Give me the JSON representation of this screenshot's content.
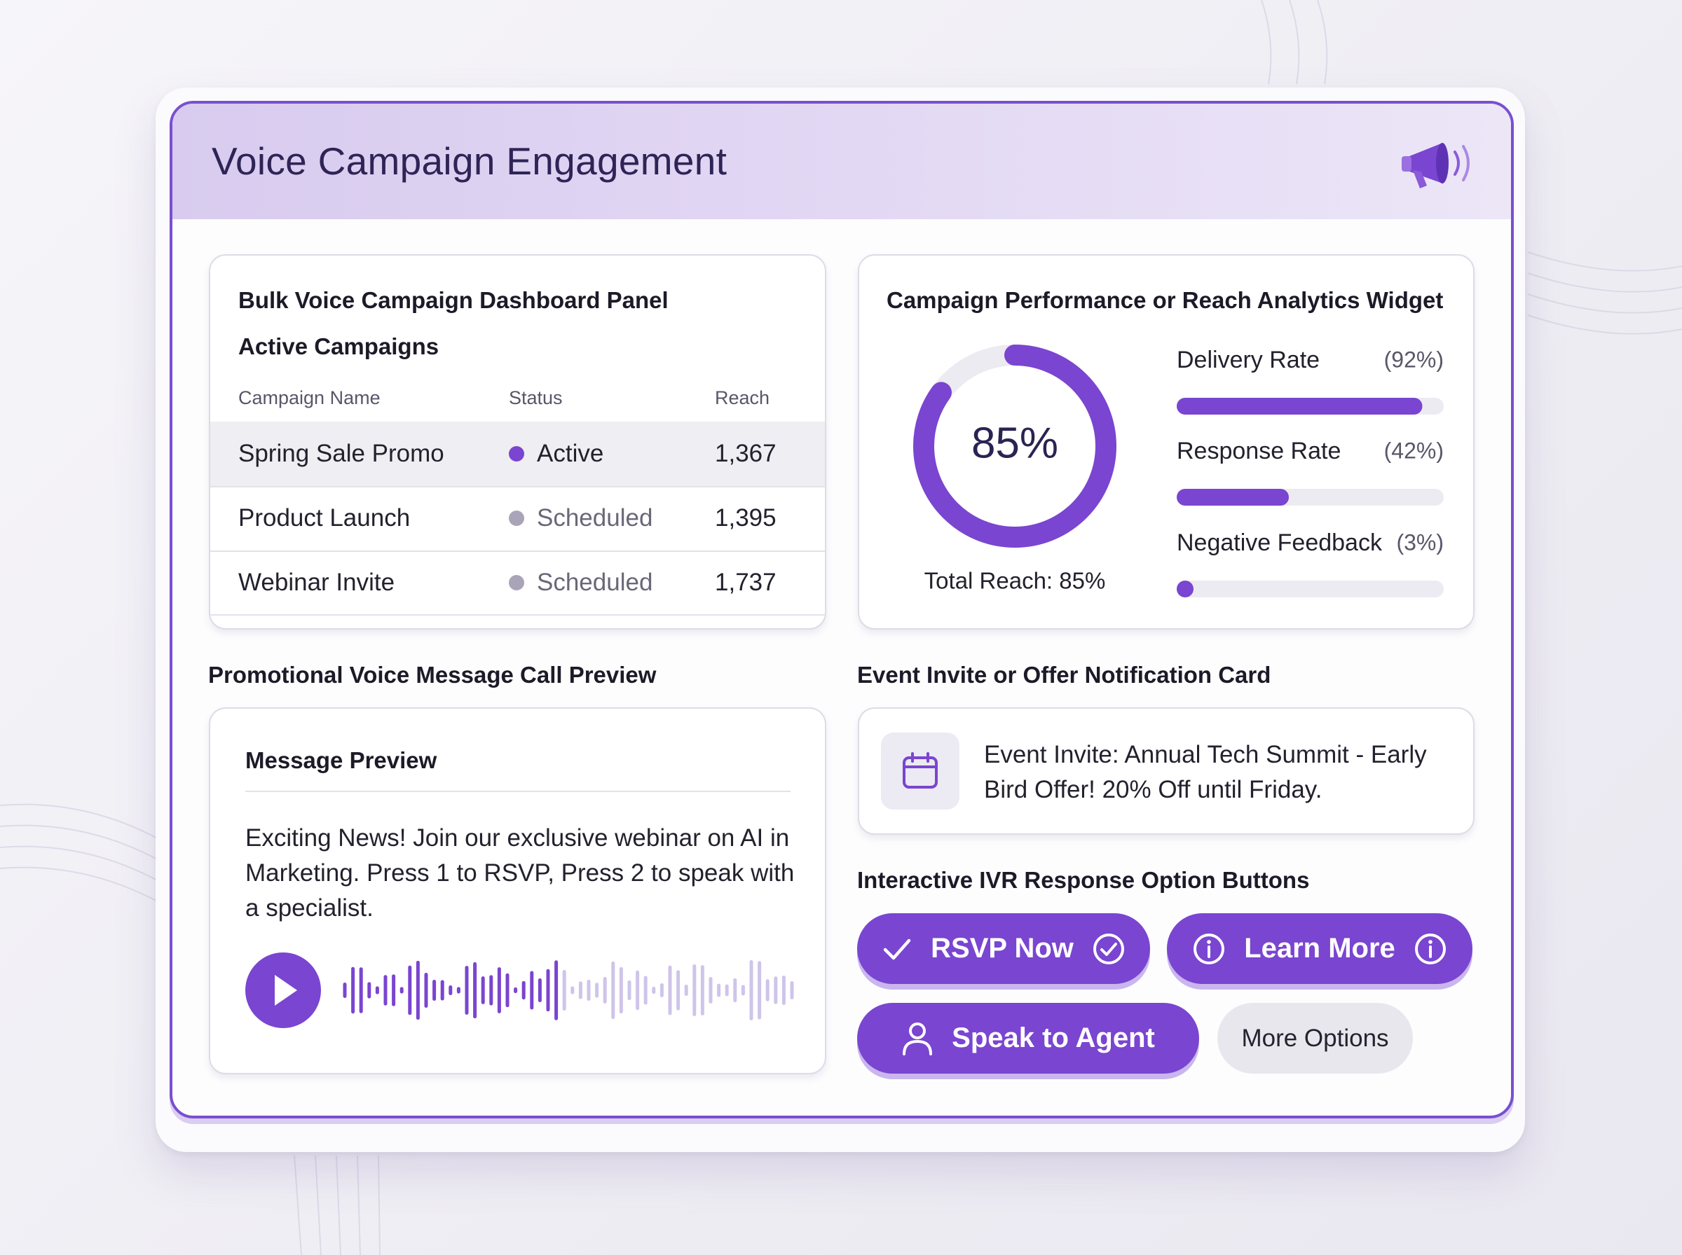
{
  "header": {
    "title": "Voice Campaign Engagement"
  },
  "campaign_panel": {
    "title": "Bulk Voice Campaign Dashboard Panel",
    "subtitle": "Active Campaigns",
    "table": {
      "columns": [
        "Campaign Name",
        "Status",
        "Reach"
      ],
      "rows": [
        [
          "Spring Sale Promo",
          "Active",
          "1,367"
        ],
        [
          "Product Launch",
          "Scheduled",
          "1,395"
        ],
        [
          "Webinar Invite",
          "Scheduled",
          "1,737"
        ]
      ]
    }
  },
  "analytics": {
    "title": "Campaign Performance or Reach Analytics Widget",
    "total_reach": {
      "value": 85,
      "label": "85%",
      "caption": "Total Reach: 85%"
    },
    "metrics": [
      {
        "name": "Delivery Rate",
        "value": 92,
        "label": "(92%)"
      },
      {
        "name": "Response Rate",
        "value": 42,
        "label": "(42%)"
      },
      {
        "name": "Negative Feedback",
        "value": 3,
        "label": "(3%)"
      }
    ]
  },
  "preview": {
    "section_title": "Promotional Voice Message Call Preview",
    "card_title": "Message Preview",
    "message": "Exciting News! Join our exclusive webinar on AI in Marketing. Press 1 to RSVP, Press 2 to speak with a specialist."
  },
  "notification": {
    "section_title": "Event Invite or Offer Notification Card",
    "text": "Event Invite: Annual Tech Summit - Early Bird Offer! 20% Off until Friday."
  },
  "ivr": {
    "section_title": "Interactive IVR Response Option Buttons",
    "buttons": [
      "RSVP Now",
      "Learn More",
      "Speak to Agent",
      "More Options"
    ]
  }
}
